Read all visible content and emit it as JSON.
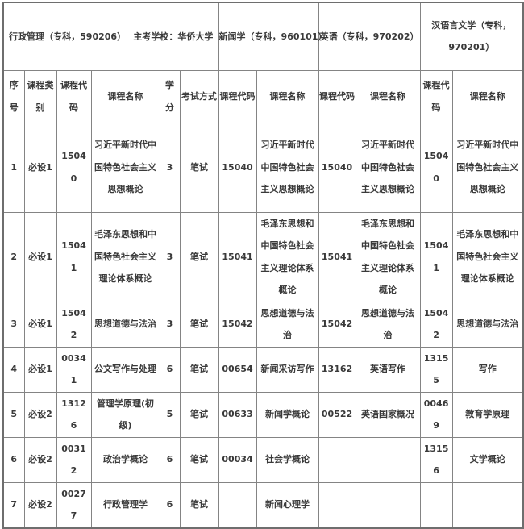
{
  "table": {
    "majors": [
      {
        "label": "行政管理（专科，590206）　 主考学校：华侨大学"
      },
      {
        "label": "新闻学（专科，960101）"
      },
      {
        "label": "英语（专科，970202）"
      },
      {
        "label": "汉语言文学（专科，970201）"
      }
    ],
    "column_headers": [
      "序号",
      "课程类别",
      "课程代码",
      "课程名称",
      "学分",
      "考试方式",
      "课程代码",
      "课程名称",
      "课程代码",
      "课程名称",
      "课程代码",
      "课程名称"
    ],
    "rows": [
      {
        "cells": [
          "1",
          "必设1",
          "15040",
          "习近平新时代中国特色社会主义思想概论",
          "3",
          "笔试",
          "15040",
          "习近平新时代中国特色社会主义思想概论",
          "15040",
          "习近平新时代中国特色社会主义思想概论",
          "15040",
          "习近平新时代中国特色社会主义思想概论"
        ]
      },
      {
        "cells": [
          "2",
          "必设1",
          "15041",
          "毛泽东思想和中国特色社会主义理论体系概论",
          "3",
          "笔试",
          "15041",
          "毛泽东思想和中国特色社会主义理论体系概论",
          "15041",
          "毛泽东思想和中国特色社会主义理论体系概论",
          "15041",
          "毛泽东思想和中国特色社会主义理论体系概论"
        ]
      },
      {
        "cells": [
          "3",
          "必设1",
          "15042",
          "思想道德与法治",
          "3",
          "笔试",
          "15042",
          "思想道德与法治",
          "15042",
          "思想道德与法治",
          "15042",
          "思想道德与法治"
        ]
      },
      {
        "cells": [
          "4",
          "必设1",
          "00341",
          "公文写作与处理",
          "6",
          "笔试",
          "00654",
          "新闻采访写作",
          "13162",
          "英语写作",
          "13155",
          "写作"
        ]
      },
      {
        "cells": [
          "5",
          "必设2",
          "13126",
          "管理学原理(初级)",
          "5",
          "笔试",
          "00633",
          "新闻学概论",
          "00522",
          "英语国家概况",
          "00469",
          "教育学原理"
        ]
      },
      {
        "cells": [
          "6",
          "必设2",
          "00312",
          "政治学概论",
          "6",
          "笔试",
          "00034",
          "社会学概论",
          "",
          "",
          "13156",
          "文学概论"
        ]
      },
      {
        "cells": [
          "7",
          "必设2",
          "00277",
          "行政管理学",
          "6",
          "笔试",
          "",
          "新闻心理学",
          "",
          "",
          "",
          ""
        ]
      }
    ]
  }
}
